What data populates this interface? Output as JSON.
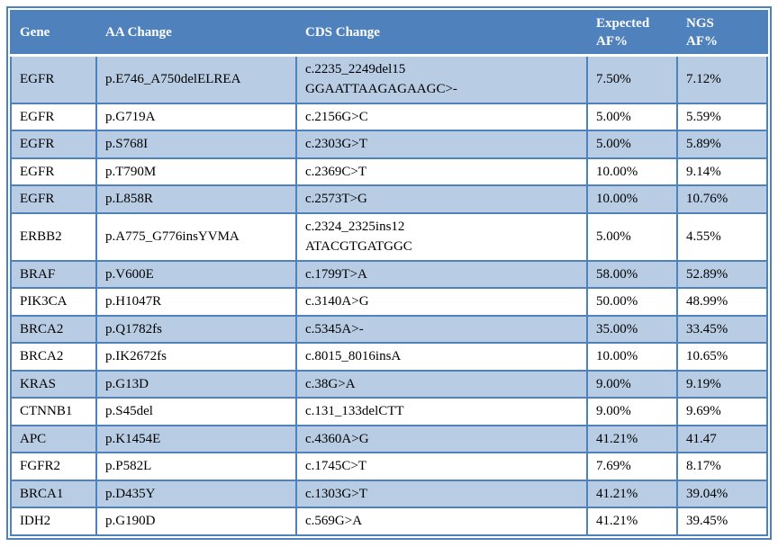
{
  "colors": {
    "header_bg": "#4F81BD",
    "header_text": "#FFFFFF",
    "banded_row_bg": "#B8CCE4",
    "plain_row_bg": "#FFFFFF",
    "border": "#4F81BD",
    "body_text": "#000000"
  },
  "table": {
    "columns": [
      {
        "key": "gene",
        "label": "Gene"
      },
      {
        "key": "aa-change",
        "label": "AA Change"
      },
      {
        "key": "cds-change",
        "label": "CDS Change"
      },
      {
        "key": "expected-af",
        "label": "Expected\nAF%"
      },
      {
        "key": "ngs-af",
        "label": "NGS\nAF%"
      }
    ],
    "rows": [
      [
        "EGFR",
        "p.E746_A750delELREA",
        "c.2235_2249del15\nGGAATTAAGAGAAGC>-",
        "7.50%",
        "7.12%"
      ],
      [
        "EGFR",
        "p.G719A",
        "c.2156G>C",
        "5.00%",
        "5.59%"
      ],
      [
        "EGFR",
        "p.S768I",
        "c.2303G>T",
        "5.00%",
        "5.89%"
      ],
      [
        "EGFR",
        "p.T790M",
        "c.2369C>T",
        "10.00%",
        "9.14%"
      ],
      [
        "EGFR",
        "p.L858R",
        "c.2573T>G",
        "10.00%",
        "10.76%"
      ],
      [
        "ERBB2",
        "p.A775_G776insYVMA",
        "c.2324_2325ins12\nATACGTGATGGC",
        "5.00%",
        "4.55%"
      ],
      [
        "BRAF",
        "p.V600E",
        "c.1799T>A",
        "58.00%",
        "52.89%"
      ],
      [
        "PIK3CA",
        "p.H1047R",
        "c.3140A>G",
        "50.00%",
        "48.99%"
      ],
      [
        "BRCA2",
        "p.Q1782fs",
        "c.5345A>-",
        "35.00%",
        "33.45%"
      ],
      [
        "BRCA2",
        "p.IK2672fs",
        "c.8015_8016insA",
        "10.00%",
        "10.65%"
      ],
      [
        "KRAS",
        "p.G13D",
        "c.38G>A",
        "9.00%",
        "9.19%"
      ],
      [
        "CTNNB1",
        "p.S45del",
        "c.131_133delCTT",
        "9.00%",
        "9.69%"
      ],
      [
        "APC",
        "p.K1454E",
        "c.4360A>G",
        "41.21%",
        "41.47"
      ],
      [
        "FGFR2",
        "p.P582L",
        "c.1745C>T",
        "7.69%",
        "8.17%"
      ],
      [
        "BRCA1",
        "p.D435Y",
        "c.1303G>T",
        "41.21%",
        "39.04%"
      ],
      [
        "IDH2",
        "p.G190D",
        "c.569G>A",
        "41.21%",
        "39.45%"
      ]
    ]
  }
}
